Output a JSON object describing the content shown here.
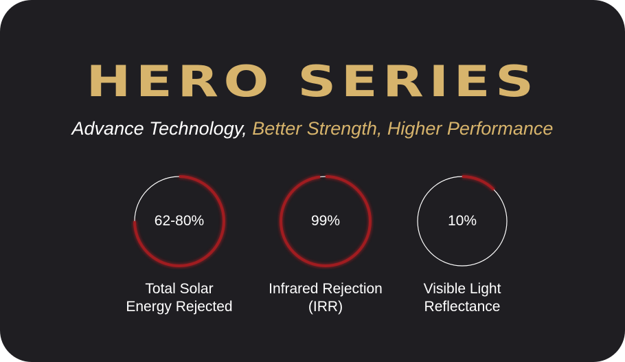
{
  "title": "HERO SERIES",
  "subtitle": {
    "part1": "Advance Technology,",
    "part2": "Better Strength, Higher Performance"
  },
  "colors": {
    "background": "#1f1e22",
    "gold": "#d7b46c",
    "ring_fill": "#a01c20",
    "ring_track": "#ffffff"
  },
  "stats": [
    {
      "value": "62-80%",
      "label_line1": "Total Solar",
      "label_line2": "Energy Rejected",
      "fill_fraction": 0.75
    },
    {
      "value": "99%",
      "label_line1": "Infrared Rejection",
      "label_line2": "(IRR)",
      "fill_fraction": 0.98
    },
    {
      "value": "10%",
      "label_line1": "Visible Light",
      "label_line2": "Reflectance",
      "fill_fraction": 0.125
    }
  ]
}
